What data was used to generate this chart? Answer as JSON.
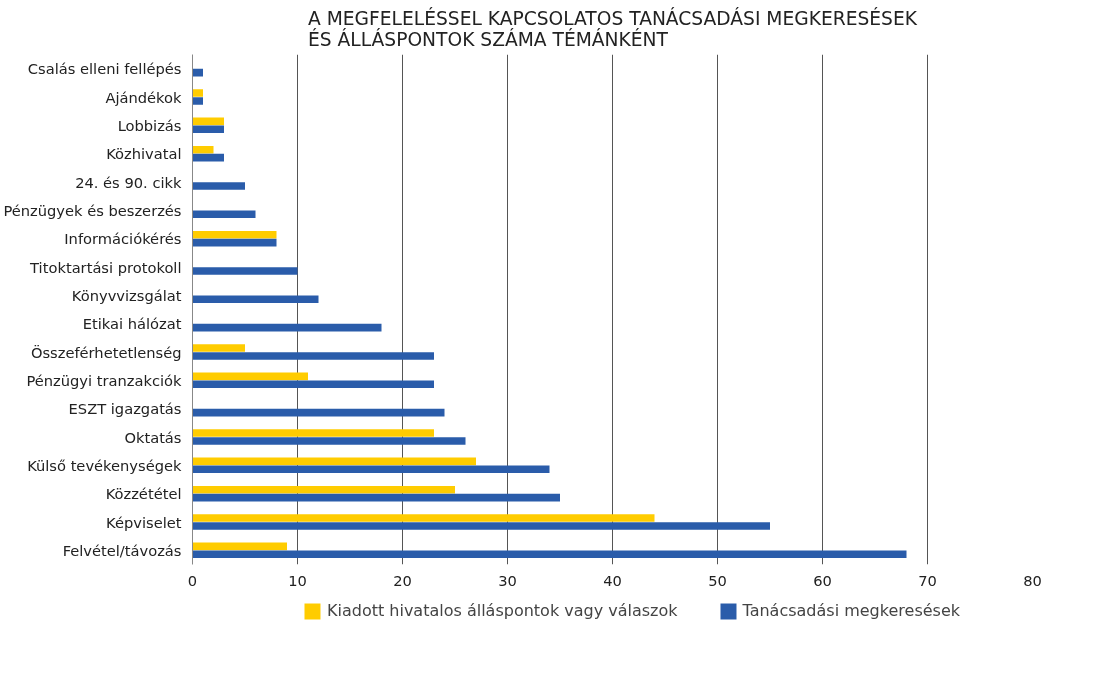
{
  "chart_data": {
    "type": "bar",
    "orientation": "horizontal",
    "title": "A MEGFELELÉSSEL KAPCSOLATOS TANÁCSADÁSI MEGKERESÉSEK\nÉS ÁLLÁSPONTOK SZÁMA TÉMÁNKÉNT",
    "categories": [
      "Csalás elleni fellépés",
      "Ajándékok",
      "Lobbizás",
      "Közhivatal",
      "24. és 90. cikk",
      "Pénzügyek és beszerzés",
      "Információkérés",
      "Titoktartási protokoll",
      "Könyvvizsgálat",
      "Etikai hálózat",
      "Összeférhetetlenség",
      "Pénzügyi tranzakciók",
      "ESZT igazgatás",
      "Oktatás",
      "Külső tevékenységek",
      "Közzététel",
      "Képviselet",
      "Felvétel/távozás"
    ],
    "series": [
      {
        "name": "Kiadott hivatalos álláspontok vagy válaszok",
        "color": "#ffcc00",
        "values": [
          null,
          1,
          3,
          2,
          null,
          null,
          8,
          null,
          null,
          null,
          5,
          11,
          null,
          23,
          27,
          25,
          44,
          9
        ]
      },
      {
        "name": "Tanácsadási megkeresések",
        "color": "#2a5caa",
        "values": [
          1,
          1,
          3,
          3,
          5,
          6,
          8,
          10,
          12,
          18,
          23,
          23,
          24,
          26,
          34,
          35,
          55,
          68
        ]
      }
    ],
    "xlim": [
      0,
      80
    ],
    "xticks": [
      0,
      10,
      20,
      30,
      40,
      50,
      60,
      70,
      80
    ],
    "grid": "x",
    "legend": "bottom"
  }
}
